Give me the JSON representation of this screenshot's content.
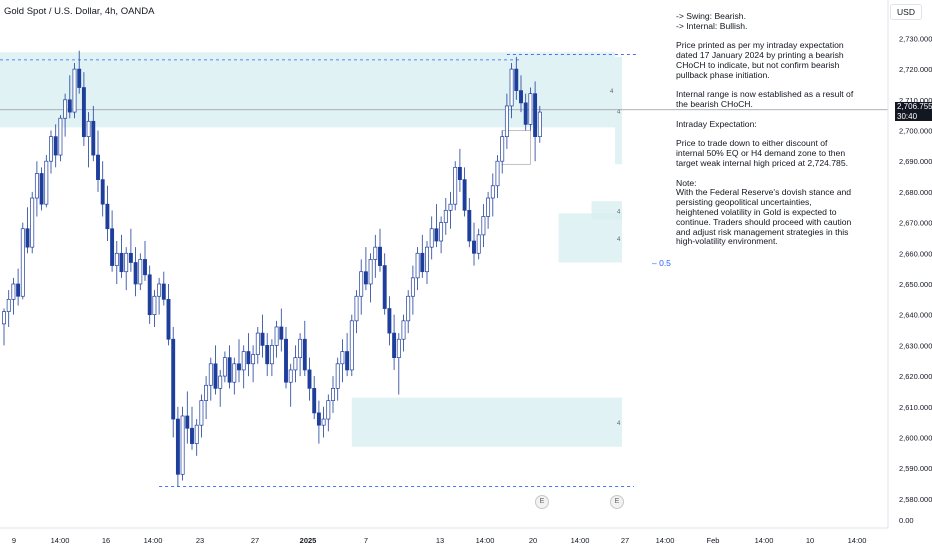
{
  "header": {
    "title": "Gold Spot / U.S. Dollar, 4h, OANDA",
    "currency": "USD"
  },
  "price_tag": {
    "price": "2,706.755",
    "countdown": "30:40"
  },
  "notes": {
    "lines": [
      "-> Swing:  Bearish.",
      "-> Internal:  Bullish.",
      "",
      "Price printed as per my intraday expectation\ndated 17 January 2024 by printing a bearish\nCHoCH to indicate, but not confirm bearish\npullback phase initiation.",
      "",
      "Internal range is now established as a result of\nthe bearish CHoCH.",
      "",
      "Intraday Expectation:",
      "",
      "Price to trade down to either discount of\ninternal 50% EQ or H4 demand zone to then\ntarget weak internal high priced at 2,724.785.",
      "",
      "Note:\nWith the Federal Reserve's dovish stance and\npersisting geopolitical uncertainties,\nheightened volatility in Gold is expected to\ncontinue. Traders should proceed with caution\nand adjust risk management strategies in this\nhigh-volatility environment."
    ]
  },
  "fib_label": "0.5",
  "zone_marker": "4",
  "event_marker": "E",
  "colors": {
    "bull": "#ffffff",
    "bear": "#1e3e9c",
    "zone": "#d7edf0",
    "dashed": "#2962ff",
    "price_line": "#9598a1",
    "text": "#131722"
  },
  "chart_data": {
    "type": "candlestick",
    "title": "Gold Spot / U.S. Dollar, 4h, OANDA",
    "ylim": [
      2578,
      2736
    ],
    "y_ticks": [
      2580,
      2590,
      2600,
      2610,
      2620,
      2630,
      2640,
      2650,
      2660,
      2670,
      2680,
      2690,
      2700,
      2710,
      2720,
      2730
    ],
    "y_tick_labels": [
      "2,580.000",
      "2,590.000",
      "2,600.000",
      "2,610.000",
      "2,620.000",
      "2,630.000",
      "2,640.000",
      "2,650.000",
      "2,660.000",
      "2,670.000",
      "2,680.000",
      "2,690.000",
      "2,700.000",
      "2,710.000",
      "2,720.000",
      "2,730.000"
    ],
    "y_zero_label": "0.00",
    "x_ticks": [
      "9",
      "14:00",
      "16",
      "14:00",
      "23",
      "27",
      "2025",
      "7",
      "13",
      "14:00",
      "20",
      "14:00",
      "27",
      "14:00",
      "Feb",
      "14:00",
      "10",
      "14:00"
    ],
    "current_price": 2706.755,
    "levels": [
      {
        "name": "weak internal high",
        "price": 2724.785,
        "style": "dashed"
      },
      {
        "name": "swing high level",
        "price": 2723.0,
        "style": "dashed"
      },
      {
        "name": "swing low level",
        "price": 2584.0,
        "style": "dashed"
      }
    ],
    "zones": [
      {
        "from_index": 0,
        "to_index": 130,
        "top": 2725.5,
        "bottom": 2701.0
      },
      {
        "from_index": 130,
        "to_index": 139,
        "top": 2724.0,
        "bottom": 2689.0
      },
      {
        "from_index": 125,
        "to_index": 159,
        "top": 2677.0,
        "bottom": 2671.0
      },
      {
        "from_index": 118,
        "to_index": 159,
        "top": 2673.0,
        "bottom": 2657.0
      },
      {
        "from_index": 74,
        "to_index": 159,
        "top": 2613.0,
        "bottom": 2597.0
      }
    ],
    "fib_level": {
      "label": "0.5",
      "price": 2655.0
    },
    "candles": [
      [
        2637,
        2642,
        2630,
        2641
      ],
      [
        2641,
        2648,
        2636,
        2645
      ],
      [
        2645,
        2652,
        2640,
        2650
      ],
      [
        2650,
        2655,
        2643,
        2646
      ],
      [
        2646,
        2670,
        2645,
        2668
      ],
      [
        2668,
        2675,
        2660,
        2662
      ],
      [
        2662,
        2680,
        2660,
        2678
      ],
      [
        2678,
        2690,
        2672,
        2686
      ],
      [
        2686,
        2688,
        2674,
        2676
      ],
      [
        2676,
        2692,
        2675,
        2690
      ],
      [
        2690,
        2700,
        2686,
        2698
      ],
      [
        2698,
        2702,
        2688,
        2692
      ],
      [
        2692,
        2705,
        2690,
        2704
      ],
      [
        2704,
        2712,
        2698,
        2710
      ],
      [
        2710,
        2718,
        2704,
        2706
      ],
      [
        2706,
        2722,
        2704,
        2720
      ],
      [
        2720,
        2726,
        2712,
        2714
      ],
      [
        2714,
        2719,
        2695,
        2698
      ],
      [
        2698,
        2706,
        2688,
        2703
      ],
      [
        2703,
        2708,
        2690,
        2692
      ],
      [
        2692,
        2700,
        2680,
        2684
      ],
      [
        2684,
        2690,
        2672,
        2676
      ],
      [
        2676,
        2682,
        2664,
        2668
      ],
      [
        2668,
        2674,
        2654,
        2656
      ],
      [
        2656,
        2664,
        2650,
        2660
      ],
      [
        2660,
        2666,
        2652,
        2654
      ],
      [
        2654,
        2662,
        2648,
        2660
      ],
      [
        2660,
        2668,
        2654,
        2657
      ],
      [
        2657,
        2662,
        2646,
        2650
      ],
      [
        2650,
        2660,
        2648,
        2658
      ],
      [
        2658,
        2664,
        2651,
        2653
      ],
      [
        2653,
        2656,
        2637,
        2640
      ],
      [
        2640,
        2648,
        2636,
        2646
      ],
      [
        2646,
        2652,
        2640,
        2650
      ],
      [
        2650,
        2654,
        2643,
        2645
      ],
      [
        2645,
        2650,
        2630,
        2632
      ],
      [
        2632,
        2636,
        2600,
        2606
      ],
      [
        2606,
        2610,
        2584,
        2588
      ],
      [
        2588,
        2610,
        2586,
        2607
      ],
      [
        2607,
        2615,
        2598,
        2603
      ],
      [
        2603,
        2610,
        2596,
        2598
      ],
      [
        2598,
        2606,
        2594,
        2604
      ],
      [
        2604,
        2614,
        2600,
        2612
      ],
      [
        2612,
        2620,
        2606,
        2617
      ],
      [
        2617,
        2626,
        2612,
        2624
      ],
      [
        2624,
        2630,
        2614,
        2616
      ],
      [
        2616,
        2622,
        2610,
        2620
      ],
      [
        2620,
        2628,
        2618,
        2626
      ],
      [
        2626,
        2630,
        2616,
        2618
      ],
      [
        2618,
        2626,
        2614,
        2624
      ],
      [
        2624,
        2632,
        2618,
        2622
      ],
      [
        2622,
        2630,
        2616,
        2628
      ],
      [
        2628,
        2634,
        2620,
        2624
      ],
      [
        2624,
        2630,
        2618,
        2627
      ],
      [
        2627,
        2636,
        2624,
        2634
      ],
      [
        2634,
        2640,
        2626,
        2630
      ],
      [
        2630,
        2634,
        2620,
        2624
      ],
      [
        2624,
        2632,
        2620,
        2630
      ],
      [
        2630,
        2638,
        2626,
        2636
      ],
      [
        2636,
        2642,
        2628,
        2632
      ],
      [
        2632,
        2636,
        2616,
        2618
      ],
      [
        2618,
        2624,
        2610,
        2622
      ],
      [
        2622,
        2630,
        2618,
        2626
      ],
      [
        2626,
        2634,
        2620,
        2632
      ],
      [
        2632,
        2638,
        2620,
        2622
      ],
      [
        2622,
        2626,
        2612,
        2616
      ],
      [
        2616,
        2620,
        2606,
        2608
      ],
      [
        2608,
        2612,
        2598,
        2604
      ],
      [
        2604,
        2610,
        2600,
        2606
      ],
      [
        2606,
        2614,
        2602,
        2612
      ],
      [
        2612,
        2620,
        2608,
        2616
      ],
      [
        2616,
        2626,
        2612,
        2624
      ],
      [
        2624,
        2632,
        2618,
        2628
      ],
      [
        2628,
        2634,
        2620,
        2622
      ],
      [
        2622,
        2640,
        2620,
        2638
      ],
      [
        2638,
        2648,
        2634,
        2646
      ],
      [
        2646,
        2658,
        2640,
        2654
      ],
      [
        2654,
        2662,
        2648,
        2650
      ],
      [
        2650,
        2660,
        2644,
        2658
      ],
      [
        2658,
        2666,
        2652,
        2662
      ],
      [
        2662,
        2668,
        2654,
        2656
      ],
      [
        2656,
        2660,
        2640,
        2642
      ],
      [
        2642,
        2646,
        2630,
        2634
      ],
      [
        2634,
        2640,
        2622,
        2626
      ],
      [
        2626,
        2634,
        2614,
        2632
      ],
      [
        2632,
        2640,
        2628,
        2638
      ],
      [
        2638,
        2648,
        2634,
        2646
      ],
      [
        2646,
        2656,
        2640,
        2652
      ],
      [
        2652,
        2662,
        2648,
        2660
      ],
      [
        2660,
        2666,
        2652,
        2654
      ],
      [
        2654,
        2664,
        2650,
        2662
      ],
      [
        2662,
        2672,
        2658,
        2668
      ],
      [
        2668,
        2676,
        2662,
        2664
      ],
      [
        2664,
        2672,
        2660,
        2670
      ],
      [
        2670,
        2678,
        2666,
        2674
      ],
      [
        2674,
        2680,
        2668,
        2676
      ],
      [
        2676,
        2690,
        2674,
        2688
      ],
      [
        2688,
        2694,
        2680,
        2684
      ],
      [
        2684,
        2688,
        2672,
        2674
      ],
      [
        2674,
        2678,
        2662,
        2664
      ],
      [
        2664,
        2670,
        2656,
        2660
      ],
      [
        2660,
        2668,
        2658,
        2666
      ],
      [
        2666,
        2676,
        2662,
        2672
      ],
      [
        2672,
        2680,
        2668,
        2678
      ],
      [
        2678,
        2686,
        2672,
        2682
      ],
      [
        2682,
        2692,
        2678,
        2690
      ],
      [
        2690,
        2700,
        2686,
        2698
      ],
      [
        2698,
        2712,
        2694,
        2708
      ],
      [
        2708,
        2722,
        2704,
        2720
      ],
      [
        2720,
        2724,
        2710,
        2713
      ],
      [
        2713,
        2718,
        2706,
        2709
      ],
      [
        2709,
        2712,
        2700,
        2702
      ],
      [
        2702,
        2714,
        2700,
        2712
      ],
      [
        2712,
        2716,
        2690,
        2698
      ],
      [
        2698,
        2708,
        2696,
        2706
      ]
    ]
  },
  "candle_positions_note": ""
}
